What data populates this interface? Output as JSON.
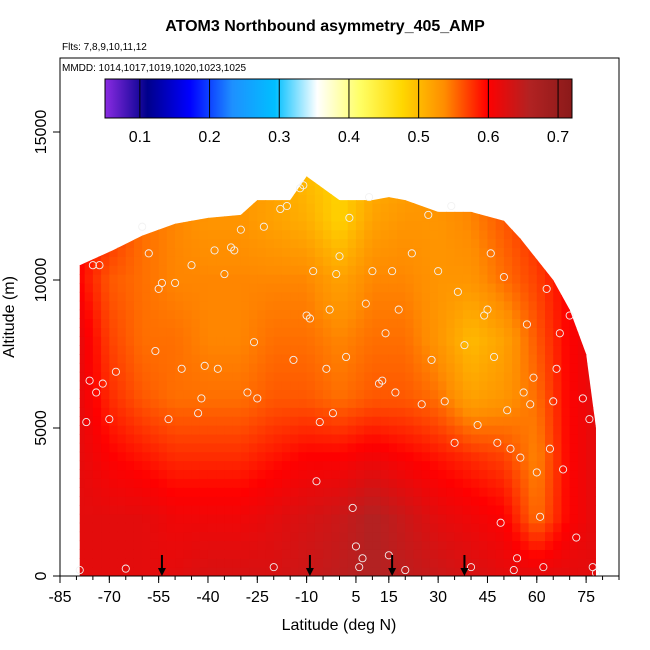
{
  "chart_data": {
    "type": "heatmap",
    "title": "ATOM3 Northbound asymmetry_405_AMP",
    "flights_label": "Flts: 7,8,9,10,11,12",
    "dates_label": "MMDD: 1014,1017,1019,1020,1023,1025",
    "xlabel": "Latitude (deg N)",
    "ylabel": "Altitude (m)",
    "xlim": [
      -85,
      85
    ],
    "ylim": [
      0,
      17500
    ],
    "x_ticks": [
      "-85",
      "-70",
      "-55",
      "-40",
      "-25",
      "-10",
      "5",
      "15",
      "30",
      "45",
      "60",
      "75"
    ],
    "x_tick_values": [
      -85,
      -70,
      -55,
      -40,
      -25,
      -10,
      5,
      15,
      30,
      45,
      60,
      75
    ],
    "y_ticks": [
      "0",
      "5000",
      "10000",
      "15000"
    ],
    "y_tick_values": [
      0,
      5000,
      10000,
      15000
    ],
    "colorbar": {
      "range": [
        0.05,
        0.72
      ],
      "tick_labels": [
        "0.1",
        "0.2",
        "0.3",
        "0.4",
        "0.5",
        "0.6",
        "0.7"
      ],
      "tick_values": [
        0.1,
        0.2,
        0.3,
        0.4,
        0.5,
        0.6,
        0.7
      ],
      "colors": [
        "#8a2be2",
        "#00008b",
        "#0000ff",
        "#1e90ff",
        "#00bfff",
        "#ffffff",
        "#ffff66",
        "#ffd700",
        "#ff8c00",
        "#ff0000",
        "#b22222",
        "#8b1a1a"
      ]
    },
    "arrow_latitudes": [
      -54,
      -9,
      16,
      38
    ],
    "top_altitude_profile": {
      "lat": [
        -79,
        -69,
        -60,
        -50,
        -40,
        -30,
        -25,
        -15,
        -10,
        0,
        10,
        15,
        20,
        30,
        40,
        50,
        55,
        60,
        65,
        70,
        75,
        78
      ],
      "alt": [
        10500,
        11000,
        11500,
        11900,
        12100,
        12200,
        12700,
        12700,
        13500,
        12700,
        12700,
        12800,
        12700,
        12300,
        12300,
        12000,
        11400,
        10700,
        10000,
        9000,
        7500,
        5000
      ]
    },
    "grid_values": {
      "lat": [
        -80,
        -70,
        -60,
        -50,
        -40,
        -30,
        -20,
        -10,
        0,
        10,
        20,
        30,
        40,
        50,
        60,
        70,
        78
      ],
      "alt": [
        0,
        2000,
        4000,
        6000,
        8000,
        10000,
        12000,
        13500
      ],
      "z": [
        [
          0.62,
          0.62,
          0.62,
          0.62,
          0.63,
          0.63,
          0.63,
          0.64,
          0.65,
          0.66,
          0.65,
          0.64,
          0.63,
          0.62,
          0.62,
          0.62,
          0.62
        ],
        [
          0.62,
          0.62,
          0.62,
          0.61,
          0.61,
          0.61,
          0.62,
          0.63,
          0.64,
          0.66,
          0.64,
          0.62,
          0.61,
          0.6,
          0.55,
          0.6,
          0.62
        ],
        [
          0.62,
          0.6,
          0.59,
          0.58,
          0.58,
          0.58,
          0.59,
          0.6,
          0.6,
          0.61,
          0.6,
          0.59,
          0.58,
          0.57,
          0.54,
          0.6,
          0.62
        ],
        [
          0.62,
          0.58,
          0.56,
          0.55,
          0.55,
          0.55,
          0.56,
          0.56,
          0.55,
          0.56,
          0.56,
          0.55,
          0.52,
          0.53,
          0.55,
          0.6,
          0.62
        ],
        [
          0.62,
          0.57,
          0.55,
          0.55,
          0.54,
          0.54,
          0.55,
          0.55,
          0.54,
          0.55,
          0.55,
          0.53,
          0.5,
          0.52,
          0.56,
          0.6,
          0.62
        ],
        [
          0.6,
          0.56,
          0.55,
          0.54,
          0.54,
          0.54,
          0.54,
          0.54,
          0.52,
          0.54,
          0.54,
          0.53,
          0.53,
          0.55,
          0.57,
          0.6,
          0.62
        ],
        [
          0.6,
          0.58,
          0.55,
          0.54,
          0.53,
          0.53,
          0.52,
          0.51,
          0.48,
          0.52,
          0.53,
          0.53,
          0.54,
          0.56,
          0.58,
          0.6,
          0.62
        ],
        [
          0.6,
          0.58,
          0.56,
          0.55,
          0.54,
          0.53,
          0.52,
          0.5,
          0.48,
          0.51,
          0.52,
          0.53,
          0.54,
          0.56,
          0.58,
          0.6,
          0.62
        ]
      ]
    },
    "sample_points": [
      [
        -79,
        200
      ],
      [
        -77,
        5200
      ],
      [
        -76,
        6600
      ],
      [
        -75,
        10500
      ],
      [
        -74,
        6200
      ],
      [
        -73,
        10500
      ],
      [
        -72,
        6500
      ],
      [
        -70,
        5300
      ],
      [
        -68,
        6900
      ],
      [
        -65,
        250
      ],
      [
        -60,
        11800
      ],
      [
        -58,
        10900
      ],
      [
        -56,
        7600
      ],
      [
        -55,
        9700
      ],
      [
        -54,
        9900
      ],
      [
        -52,
        5300
      ],
      [
        -50,
        9900
      ],
      [
        -48,
        7000
      ],
      [
        -45,
        10500
      ],
      [
        -43,
        5500
      ],
      [
        -42,
        6000
      ],
      [
        -41,
        7100
      ],
      [
        -38,
        11000
      ],
      [
        -37,
        7000
      ],
      [
        -35,
        10200
      ],
      [
        -33,
        11100
      ],
      [
        -32,
        11000
      ],
      [
        -30,
        11700
      ],
      [
        -28,
        6200
      ],
      [
        -26,
        7900
      ],
      [
        -25,
        6000
      ],
      [
        -23,
        11800
      ],
      [
        -20,
        300
      ],
      [
        -18,
        12400
      ],
      [
        -16,
        12500
      ],
      [
        -14,
        7300
      ],
      [
        -12,
        13100
      ],
      [
        -11,
        13200
      ],
      [
        -10,
        8800
      ],
      [
        -9,
        8700
      ],
      [
        -8,
        10300
      ],
      [
        -7,
        3200
      ],
      [
        -6,
        5200
      ],
      [
        -4,
        7000
      ],
      [
        -3,
        9000
      ],
      [
        -2,
        5500
      ],
      [
        -1,
        10200
      ],
      [
        0,
        10800
      ],
      [
        2,
        7400
      ],
      [
        3,
        12100
      ],
      [
        4,
        2300
      ],
      [
        5,
        1000
      ],
      [
        6,
        300
      ],
      [
        7,
        600
      ],
      [
        8,
        9200
      ],
      [
        9,
        12800
      ],
      [
        10,
        10300
      ],
      [
        12,
        6500
      ],
      [
        13,
        6600
      ],
      [
        14,
        8200
      ],
      [
        15,
        700
      ],
      [
        16,
        10300
      ],
      [
        17,
        6200
      ],
      [
        18,
        9000
      ],
      [
        20,
        200
      ],
      [
        22,
        10900
      ],
      [
        25,
        5800
      ],
      [
        27,
        12200
      ],
      [
        28,
        7300
      ],
      [
        30,
        10300
      ],
      [
        32,
        5900
      ],
      [
        34,
        12500
      ],
      [
        35,
        4500
      ],
      [
        36,
        9600
      ],
      [
        38,
        7800
      ],
      [
        40,
        300
      ],
      [
        42,
        5100
      ],
      [
        44,
        8800
      ],
      [
        45,
        9000
      ],
      [
        46,
        10900
      ],
      [
        47,
        7400
      ],
      [
        48,
        4500
      ],
      [
        49,
        1800
      ],
      [
        50,
        10100
      ],
      [
        51,
        5600
      ],
      [
        52,
        4300
      ],
      [
        53,
        200
      ],
      [
        54,
        600
      ],
      [
        55,
        4000
      ],
      [
        56,
        6200
      ],
      [
        57,
        8500
      ],
      [
        58,
        5800
      ],
      [
        59,
        6700
      ],
      [
        60,
        3500
      ],
      [
        61,
        2000
      ],
      [
        62,
        300
      ],
      [
        63,
        9700
      ],
      [
        64,
        4300
      ],
      [
        65,
        5900
      ],
      [
        66,
        7000
      ],
      [
        67,
        8200
      ],
      [
        68,
        3600
      ],
      [
        70,
        8800
      ],
      [
        72,
        1300
      ],
      [
        74,
        6000
      ],
      [
        76,
        5300
      ],
      [
        77,
        300
      ],
      [
        78,
        100
      ]
    ]
  }
}
